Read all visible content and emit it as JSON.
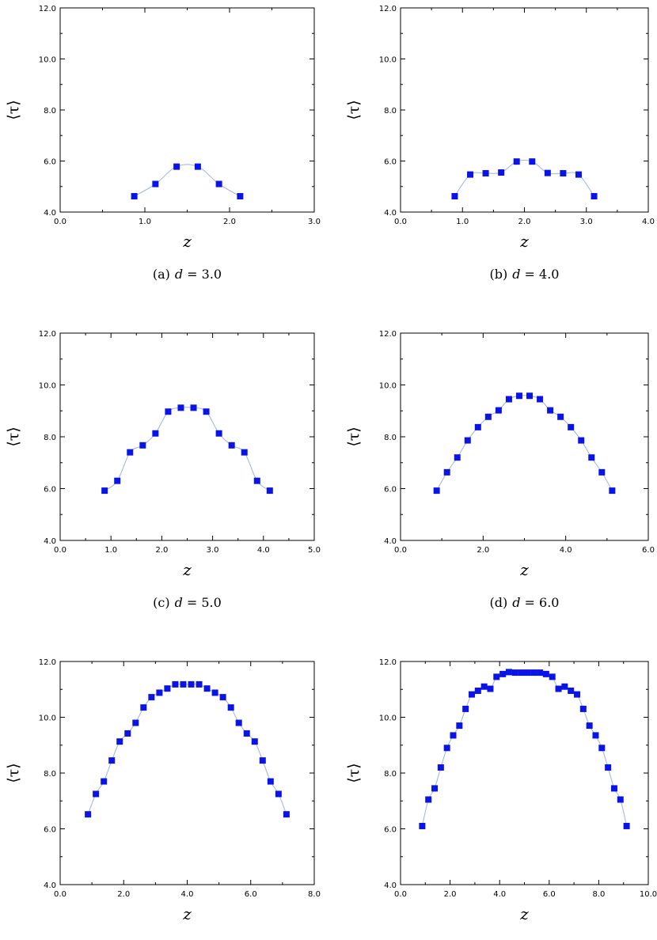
{
  "colors": {
    "marker": "#0a14e6",
    "curve": "#9fb2dc",
    "axis": "#000000"
  },
  "chart_data": [
    {
      "type": "scatter",
      "caption": {
        "label": "(a)",
        "var": "d",
        "eq": "= 3.0"
      },
      "xlabel": "z",
      "ylabel": "⟨τ⟩",
      "xlim": [
        0,
        3
      ],
      "ylim": [
        4,
        12
      ],
      "xticks": [
        "0.0",
        "1.0",
        "2.0",
        "3.0"
      ],
      "yticks": [
        "4.0",
        "6.0",
        "8.0",
        "10.0",
        "12.0"
      ],
      "x": [
        0.875,
        1.125,
        1.375,
        1.625,
        1.875,
        2.125
      ],
      "y": [
        4.62,
        5.1,
        5.78,
        5.78,
        5.1,
        4.62
      ]
    },
    {
      "type": "scatter",
      "caption": {
        "label": "(b)",
        "var": "d",
        "eq": "= 4.0"
      },
      "xlabel": "z",
      "ylabel": "⟨τ⟩",
      "xlim": [
        0,
        4
      ],
      "ylim": [
        4,
        12
      ],
      "xticks": [
        "0.0",
        "1.0",
        "2.0",
        "3.0",
        "4.0"
      ],
      "yticks": [
        "4.0",
        "6.0",
        "8.0",
        "10.0",
        "12.0"
      ],
      "x": [
        0.875,
        1.125,
        1.375,
        1.625,
        1.875,
        2.125,
        2.375,
        2.625,
        2.875,
        3.125
      ],
      "y": [
        4.62,
        5.47,
        5.52,
        5.55,
        5.98,
        5.98,
        5.53,
        5.52,
        5.47,
        4.62
      ]
    },
    {
      "type": "scatter",
      "caption": {
        "label": "(c)",
        "var": "d",
        "eq": "= 5.0"
      },
      "xlabel": "z",
      "ylabel": "⟨τ⟩",
      "xlim": [
        0,
        5
      ],
      "ylim": [
        4,
        12
      ],
      "xticks": [
        "0.0",
        "1.0",
        "2.0",
        "3.0",
        "4.0",
        "5.0"
      ],
      "yticks": [
        "4.0",
        "6.0",
        "8.0",
        "10.0",
        "12.0"
      ],
      "x": [
        0.875,
        1.125,
        1.375,
        1.625,
        1.875,
        2.125,
        2.375,
        2.625,
        2.875,
        3.125,
        3.375,
        3.625,
        3.875,
        4.125
      ],
      "y": [
        5.92,
        6.3,
        7.4,
        7.67,
        8.13,
        8.97,
        9.12,
        9.12,
        8.97,
        8.13,
        7.67,
        7.4,
        6.3,
        5.92
      ]
    },
    {
      "type": "scatter",
      "caption": {
        "label": "(d)",
        "var": "d",
        "eq": "= 6.0"
      },
      "xlabel": "z",
      "ylabel": "⟨τ⟩",
      "xlim": [
        0,
        6
      ],
      "ylim": [
        4,
        12
      ],
      "xticks": [
        "0.0",
        "2.0",
        "4.0",
        "6.0"
      ],
      "yticks": [
        "4.0",
        "6.0",
        "8.0",
        "10.0",
        "12.0"
      ],
      "x": [
        0.875,
        1.125,
        1.375,
        1.625,
        1.875,
        2.125,
        2.375,
        2.625,
        2.875,
        3.125,
        3.375,
        3.625,
        3.875,
        4.125,
        4.375,
        4.625,
        4.875,
        5.125
      ],
      "y": [
        5.92,
        6.63,
        7.2,
        7.86,
        8.37,
        8.77,
        9.02,
        9.45,
        9.58,
        9.58,
        9.45,
        9.02,
        8.77,
        8.37,
        7.86,
        7.2,
        6.63,
        5.92
      ]
    },
    {
      "type": "scatter",
      "caption": {
        "label": "(e)",
        "var": "d",
        "eq": "= 8.0"
      },
      "xlabel": "z",
      "ylabel": "⟨τ⟩",
      "xlim": [
        0,
        8
      ],
      "ylim": [
        4,
        12
      ],
      "xticks": [
        "0.0",
        "2.0",
        "4.0",
        "6.0",
        "8.0"
      ],
      "yticks": [
        "4.0",
        "6.0",
        "8.0",
        "10.0",
        "12.0"
      ],
      "x": [
        0.875,
        1.125,
        1.375,
        1.625,
        1.875,
        2.125,
        2.375,
        2.625,
        2.875,
        3.125,
        3.375,
        3.625,
        3.875,
        4.125,
        4.375,
        4.625,
        4.875,
        5.125,
        5.375,
        5.625,
        5.875,
        6.125,
        6.375,
        6.625,
        6.875,
        7.125
      ],
      "y": [
        6.52,
        7.25,
        7.7,
        8.45,
        9.13,
        9.42,
        9.8,
        10.35,
        10.72,
        10.88,
        11.03,
        11.18,
        11.18,
        11.18,
        11.18,
        11.03,
        10.88,
        10.72,
        10.35,
        9.8,
        9.42,
        9.13,
        8.45,
        7.7,
        7.25,
        6.52
      ]
    },
    {
      "type": "scatter",
      "caption": {
        "label": "(f)",
        "var": "d",
        "eq": "= 10.0"
      },
      "xlabel": "z",
      "ylabel": "⟨τ⟩",
      "xlim": [
        0,
        10
      ],
      "ylim": [
        4,
        12
      ],
      "xticks": [
        "0.0",
        "2.0",
        "4.0",
        "6.0",
        "8.0",
        "10.0"
      ],
      "yticks": [
        "4.0",
        "6.0",
        "8.0",
        "10.0",
        "12.0"
      ],
      "x": [
        0.875,
        1.125,
        1.375,
        1.625,
        1.875,
        2.125,
        2.375,
        2.625,
        2.875,
        3.125,
        3.375,
        3.625,
        3.875,
        4.125,
        4.375,
        4.625,
        4.875,
        5.125,
        5.375,
        5.625,
        5.875,
        6.125,
        6.375,
        6.625,
        6.875,
        7.125,
        7.375,
        7.625,
        7.875,
        8.125,
        8.375,
        8.625,
        8.875,
        9.125
      ],
      "y": [
        6.1,
        7.05,
        7.45,
        8.2,
        8.9,
        9.35,
        9.7,
        10.3,
        10.82,
        10.95,
        11.1,
        11.02,
        11.45,
        11.55,
        11.62,
        11.6,
        11.6,
        11.6,
        11.6,
        11.6,
        11.55,
        11.45,
        11.02,
        11.1,
        10.95,
        10.82,
        10.3,
        9.7,
        9.35,
        8.9,
        8.2,
        7.45,
        7.05,
        6.1
      ]
    }
  ]
}
